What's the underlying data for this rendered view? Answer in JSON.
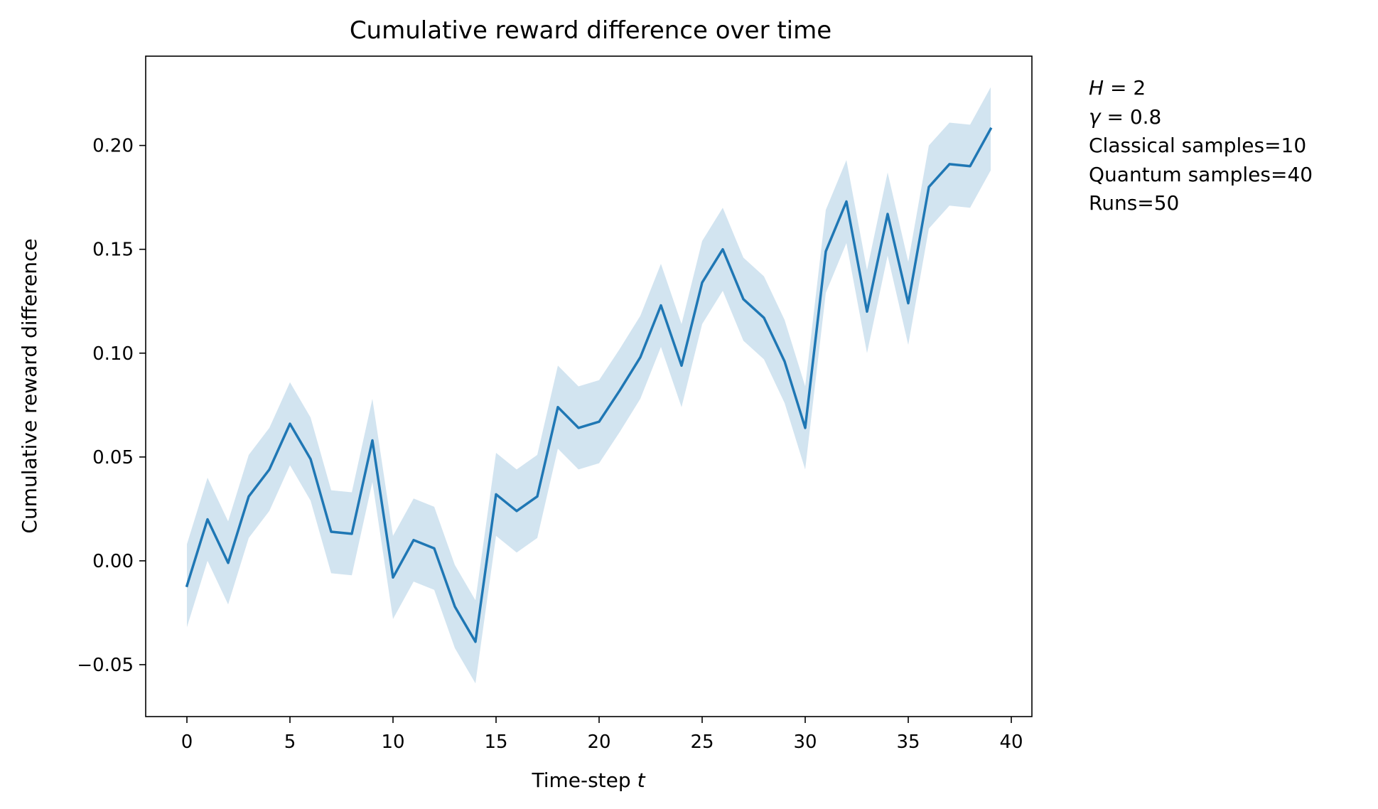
{
  "chart_data": {
    "type": "line",
    "title": "Cumulative reward difference over time",
    "xlabel": "Time-step",
    "xlabel_var": "t",
    "ylabel": "Cumulative reward difference",
    "xlim": [
      -2,
      41
    ],
    "ylim": [
      -0.075,
      0.243
    ],
    "xticks": [
      0,
      5,
      10,
      15,
      20,
      25,
      30,
      35,
      40
    ],
    "xtick_labels": [
      "0",
      "5",
      "10",
      "15",
      "20",
      "25",
      "30",
      "35",
      "40"
    ],
    "yticks": [
      -0.05,
      0.0,
      0.05,
      0.1,
      0.15,
      0.2
    ],
    "ytick_labels": [
      "−0.05",
      "0.00",
      "0.05",
      "0.10",
      "0.15",
      "0.20"
    ],
    "grid": false,
    "colors": {
      "line": "#1f77b4",
      "band": "#1f77b4"
    },
    "series": [
      {
        "x": [
          0,
          1,
          2,
          3,
          4,
          5,
          6,
          7,
          8,
          9,
          10,
          11,
          12,
          13,
          14,
          15,
          16,
          17,
          18,
          19,
          20,
          21,
          22,
          23,
          24,
          25,
          26,
          27,
          28,
          29,
          30,
          31,
          32,
          33,
          34,
          35,
          36,
          37,
          38,
          39
        ],
        "values": [
          -0.012,
          0.02,
          -0.001,
          0.031,
          0.044,
          0.066,
          0.049,
          0.014,
          0.013,
          0.058,
          -0.008,
          0.01,
          0.006,
          -0.022,
          -0.039,
          0.032,
          0.024,
          0.031,
          0.074,
          0.064,
          0.067,
          0.082,
          0.098,
          0.123,
          0.094,
          0.134,
          0.15,
          0.126,
          0.117,
          0.096,
          0.064,
          0.149,
          0.173,
          0.12,
          0.167,
          0.124,
          0.18,
          0.191,
          0.19,
          0.208
        ],
        "lower": [
          -0.032,
          0.0,
          -0.021,
          0.011,
          0.024,
          0.046,
          0.029,
          -0.006,
          -0.007,
          0.038,
          -0.028,
          -0.01,
          -0.014,
          -0.042,
          -0.059,
          0.012,
          0.004,
          0.011,
          0.054,
          0.044,
          0.047,
          0.062,
          0.078,
          0.103,
          0.074,
          0.114,
          0.13,
          0.106,
          0.097,
          0.076,
          0.044,
          0.129,
          0.153,
          0.1,
          0.147,
          0.104,
          0.16,
          0.171,
          0.17,
          0.188
        ],
        "upper": [
          0.008,
          0.04,
          0.019,
          0.051,
          0.064,
          0.086,
          0.069,
          0.034,
          0.033,
          0.078,
          0.012,
          0.03,
          0.026,
          -0.002,
          -0.019,
          0.052,
          0.044,
          0.051,
          0.094,
          0.084,
          0.087,
          0.102,
          0.118,
          0.143,
          0.114,
          0.154,
          0.17,
          0.146,
          0.137,
          0.116,
          0.084,
          0.169,
          0.193,
          0.14,
          0.187,
          0.144,
          0.2,
          0.211,
          0.21,
          0.228
        ]
      }
    ],
    "annotations": [
      {
        "var": "H",
        "text": " = 2"
      },
      {
        "var": "γ",
        "text": " = 0.8"
      },
      {
        "var": "",
        "text": "Classical samples=10"
      },
      {
        "var": "",
        "text": "Quantum samples=40"
      },
      {
        "var": "",
        "text": "Runs=50"
      }
    ]
  }
}
